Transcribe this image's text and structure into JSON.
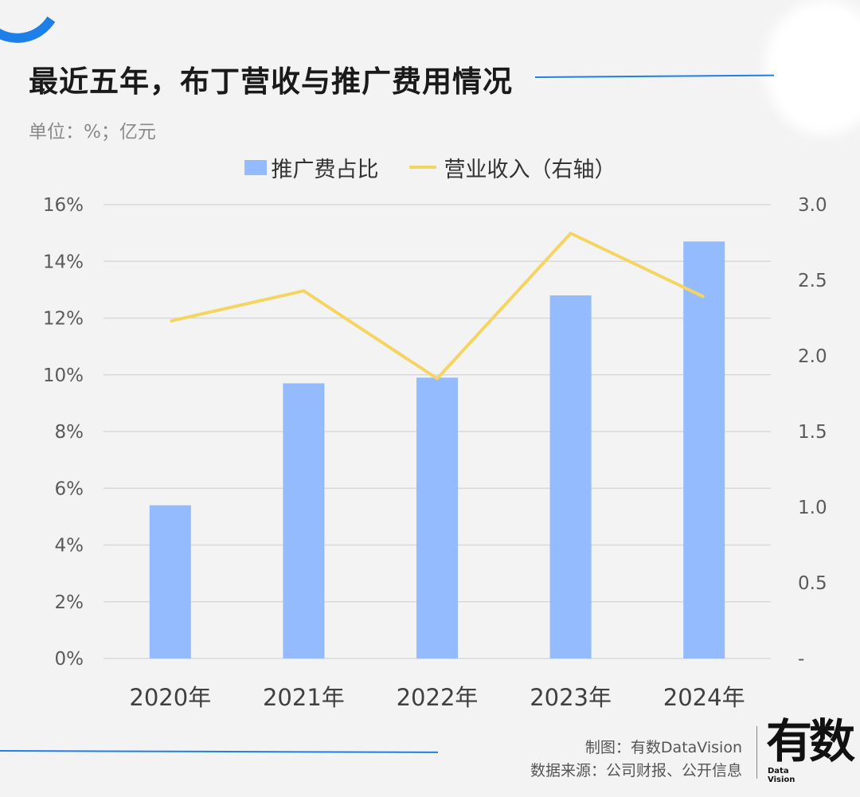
{
  "title": "最近五年，布丁营收与推广费用情况",
  "unit": "单位：%；亿元",
  "legend": {
    "bar_label": "推广费占比",
    "line_label": "营业收入（右轴）"
  },
  "credits": {
    "made_by": "制图：有数DataVision",
    "source": "数据来源：公司财报、公开信息"
  },
  "logo": {
    "glyph": "有数",
    "sub1": "Data",
    "sub2": "Vision"
  },
  "colors": {
    "bar": "#94bbfd",
    "line": "#f5d561",
    "accent": "#1f7fe8",
    "grid": "#d9d9d9"
  },
  "chart_data": {
    "type": "bar",
    "categories": [
      "2020年",
      "2021年",
      "2022年",
      "2023年",
      "2024年"
    ],
    "series": [
      {
        "name": "推广费占比",
        "type": "bar",
        "axis": "left",
        "values": [
          5.4,
          9.7,
          9.9,
          12.8,
          14.7
        ]
      },
      {
        "name": "营业收入（右轴）",
        "type": "line",
        "axis": "right",
        "values": [
          2.23,
          2.43,
          1.85,
          2.81,
          2.39
        ]
      }
    ],
    "y_left": {
      "ylim": [
        0,
        16
      ],
      "ticks": [
        "0%",
        "2%",
        "4%",
        "6%",
        "8%",
        "10%",
        "12%",
        "14%",
        "16%"
      ]
    },
    "y_right": {
      "ylim": [
        0,
        3.0
      ],
      "ticks": [
        "-",
        "0.5",
        "1.0",
        "1.5",
        "2.0",
        "2.5",
        "3.0"
      ]
    },
    "grid": true,
    "legend_position": "top-center"
  }
}
